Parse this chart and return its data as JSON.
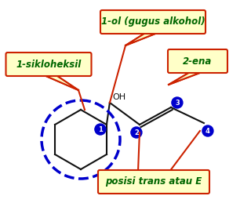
{
  "bg_color": "#ffffff",
  "molecule_color": "#111111",
  "label_box_facecolor": "#ffffc8",
  "label_box_edgecolor": "#cc2200",
  "label_text_color": "#006600",
  "circle_color": "#0000cc",
  "arrow_color": "#cc2200",
  "numbered_circle_bg": "#0000cc",
  "numbered_circle_text": "#ffffff",
  "labels": {
    "top": "1-ol (gugus alkohol)",
    "left": "1-sikloheksil",
    "right": "2-ena",
    "bottom": "posisi trans atau E"
  },
  "OH_label": "OH",
  "numbers": [
    "1",
    "2",
    "3",
    "4"
  ],
  "figsize": [
    3.2,
    2.59
  ],
  "dpi": 100
}
